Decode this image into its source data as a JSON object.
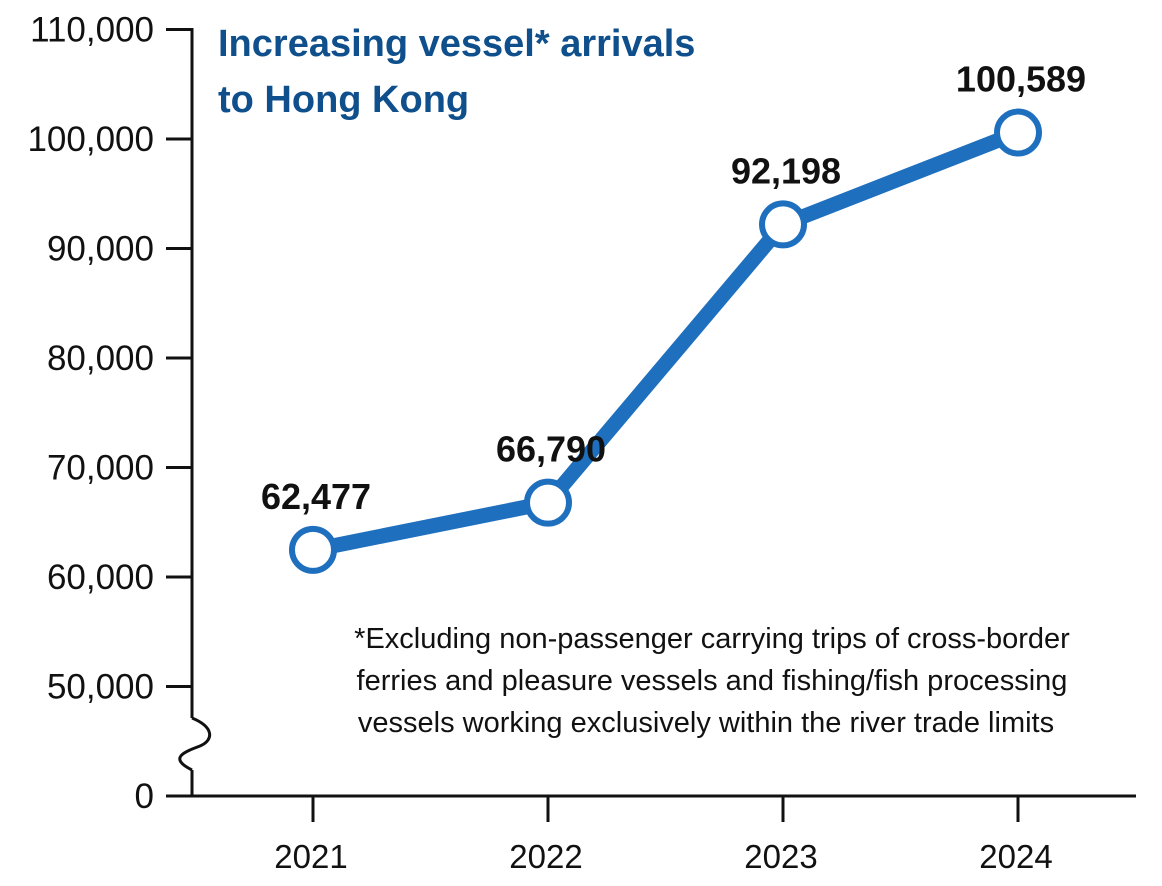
{
  "chart_data": {
    "type": "line",
    "title_lines": [
      "Increasing vessel* arrivals",
      "to Hong Kong"
    ],
    "footnote_lines": [
      "*Excluding non-passenger carrying trips of cross-border",
      "ferries and pleasure vessels and fishing/fish processing",
      "vessels working exclusively within the river trade limits"
    ],
    "xlabel": "",
    "ylabel": "",
    "categories": [
      "2021",
      "2022",
      "2023",
      "2024"
    ],
    "values": [
      62477,
      66790,
      92198,
      100589
    ],
    "data_labels": [
      "62,477",
      "66,790",
      "92,198",
      "100,589"
    ],
    "ylim": [
      40000,
      110000
    ],
    "y_ticks": [
      50000,
      60000,
      70000,
      80000,
      90000,
      100000,
      110000
    ],
    "y_tick_labels": [
      "50,000",
      "60,000",
      "70,000",
      "80,000",
      "90,000",
      "100,000",
      "110,000"
    ],
    "y_zero_label": "0",
    "axis_break": true,
    "grid": false,
    "colors": {
      "line": "#1f6fbf",
      "title": "#0e4f8c",
      "marker_fill": "#ffffff",
      "axis": "#111111"
    }
  }
}
